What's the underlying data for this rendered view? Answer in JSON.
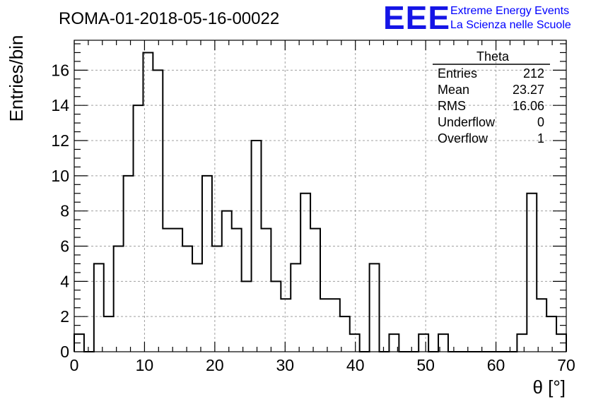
{
  "header": {
    "run_title": "ROMA-01-2018-05-16-00022",
    "logo_text": "EEE",
    "project_line1": "Extreme Energy Events",
    "project_line2": "La Scienza nelle Scuole"
  },
  "colors": {
    "logo_blue": "#1515e6",
    "project_text_blue": "#0000ff",
    "histogram_line": "#000000",
    "grid": "#a0a0a0"
  },
  "stats_box": {
    "title": "Theta",
    "rows": [
      {
        "label": "Entries",
        "value": "212"
      },
      {
        "label": "Mean",
        "value": "23.27"
      },
      {
        "label": "RMS",
        "value": "16.06"
      },
      {
        "label": "Underflow",
        "value": "0"
      },
      {
        "label": "Overflow",
        "value": "1"
      }
    ]
  },
  "chart_data": {
    "type": "histogram",
    "title": "ROMA-01-2018-05-16-00022",
    "xlabel": "θ [°]",
    "ylabel": "Entries/bin",
    "xlim": [
      0,
      70
    ],
    "ylim": [
      0,
      17.7
    ],
    "bin_width": 1.4,
    "x_ticks": [
      0,
      10,
      20,
      30,
      40,
      50,
      60,
      70
    ],
    "y_ticks": [
      0,
      2,
      4,
      6,
      8,
      10,
      12,
      14,
      16
    ],
    "grid": true,
    "bin_edges_start": 0,
    "counts": [
      1,
      0,
      5,
      2,
      6,
      10,
      14,
      17,
      16,
      7,
      7,
      6,
      5,
      10,
      6,
      8,
      7,
      4,
      12,
      7,
      4,
      3,
      5,
      9,
      7,
      3,
      3,
      2,
      1,
      0,
      5,
      0,
      1,
      0,
      0,
      1,
      0,
      1,
      0,
      0,
      0,
      0,
      0,
      0,
      0,
      1,
      9,
      3,
      2,
      1
    ]
  }
}
